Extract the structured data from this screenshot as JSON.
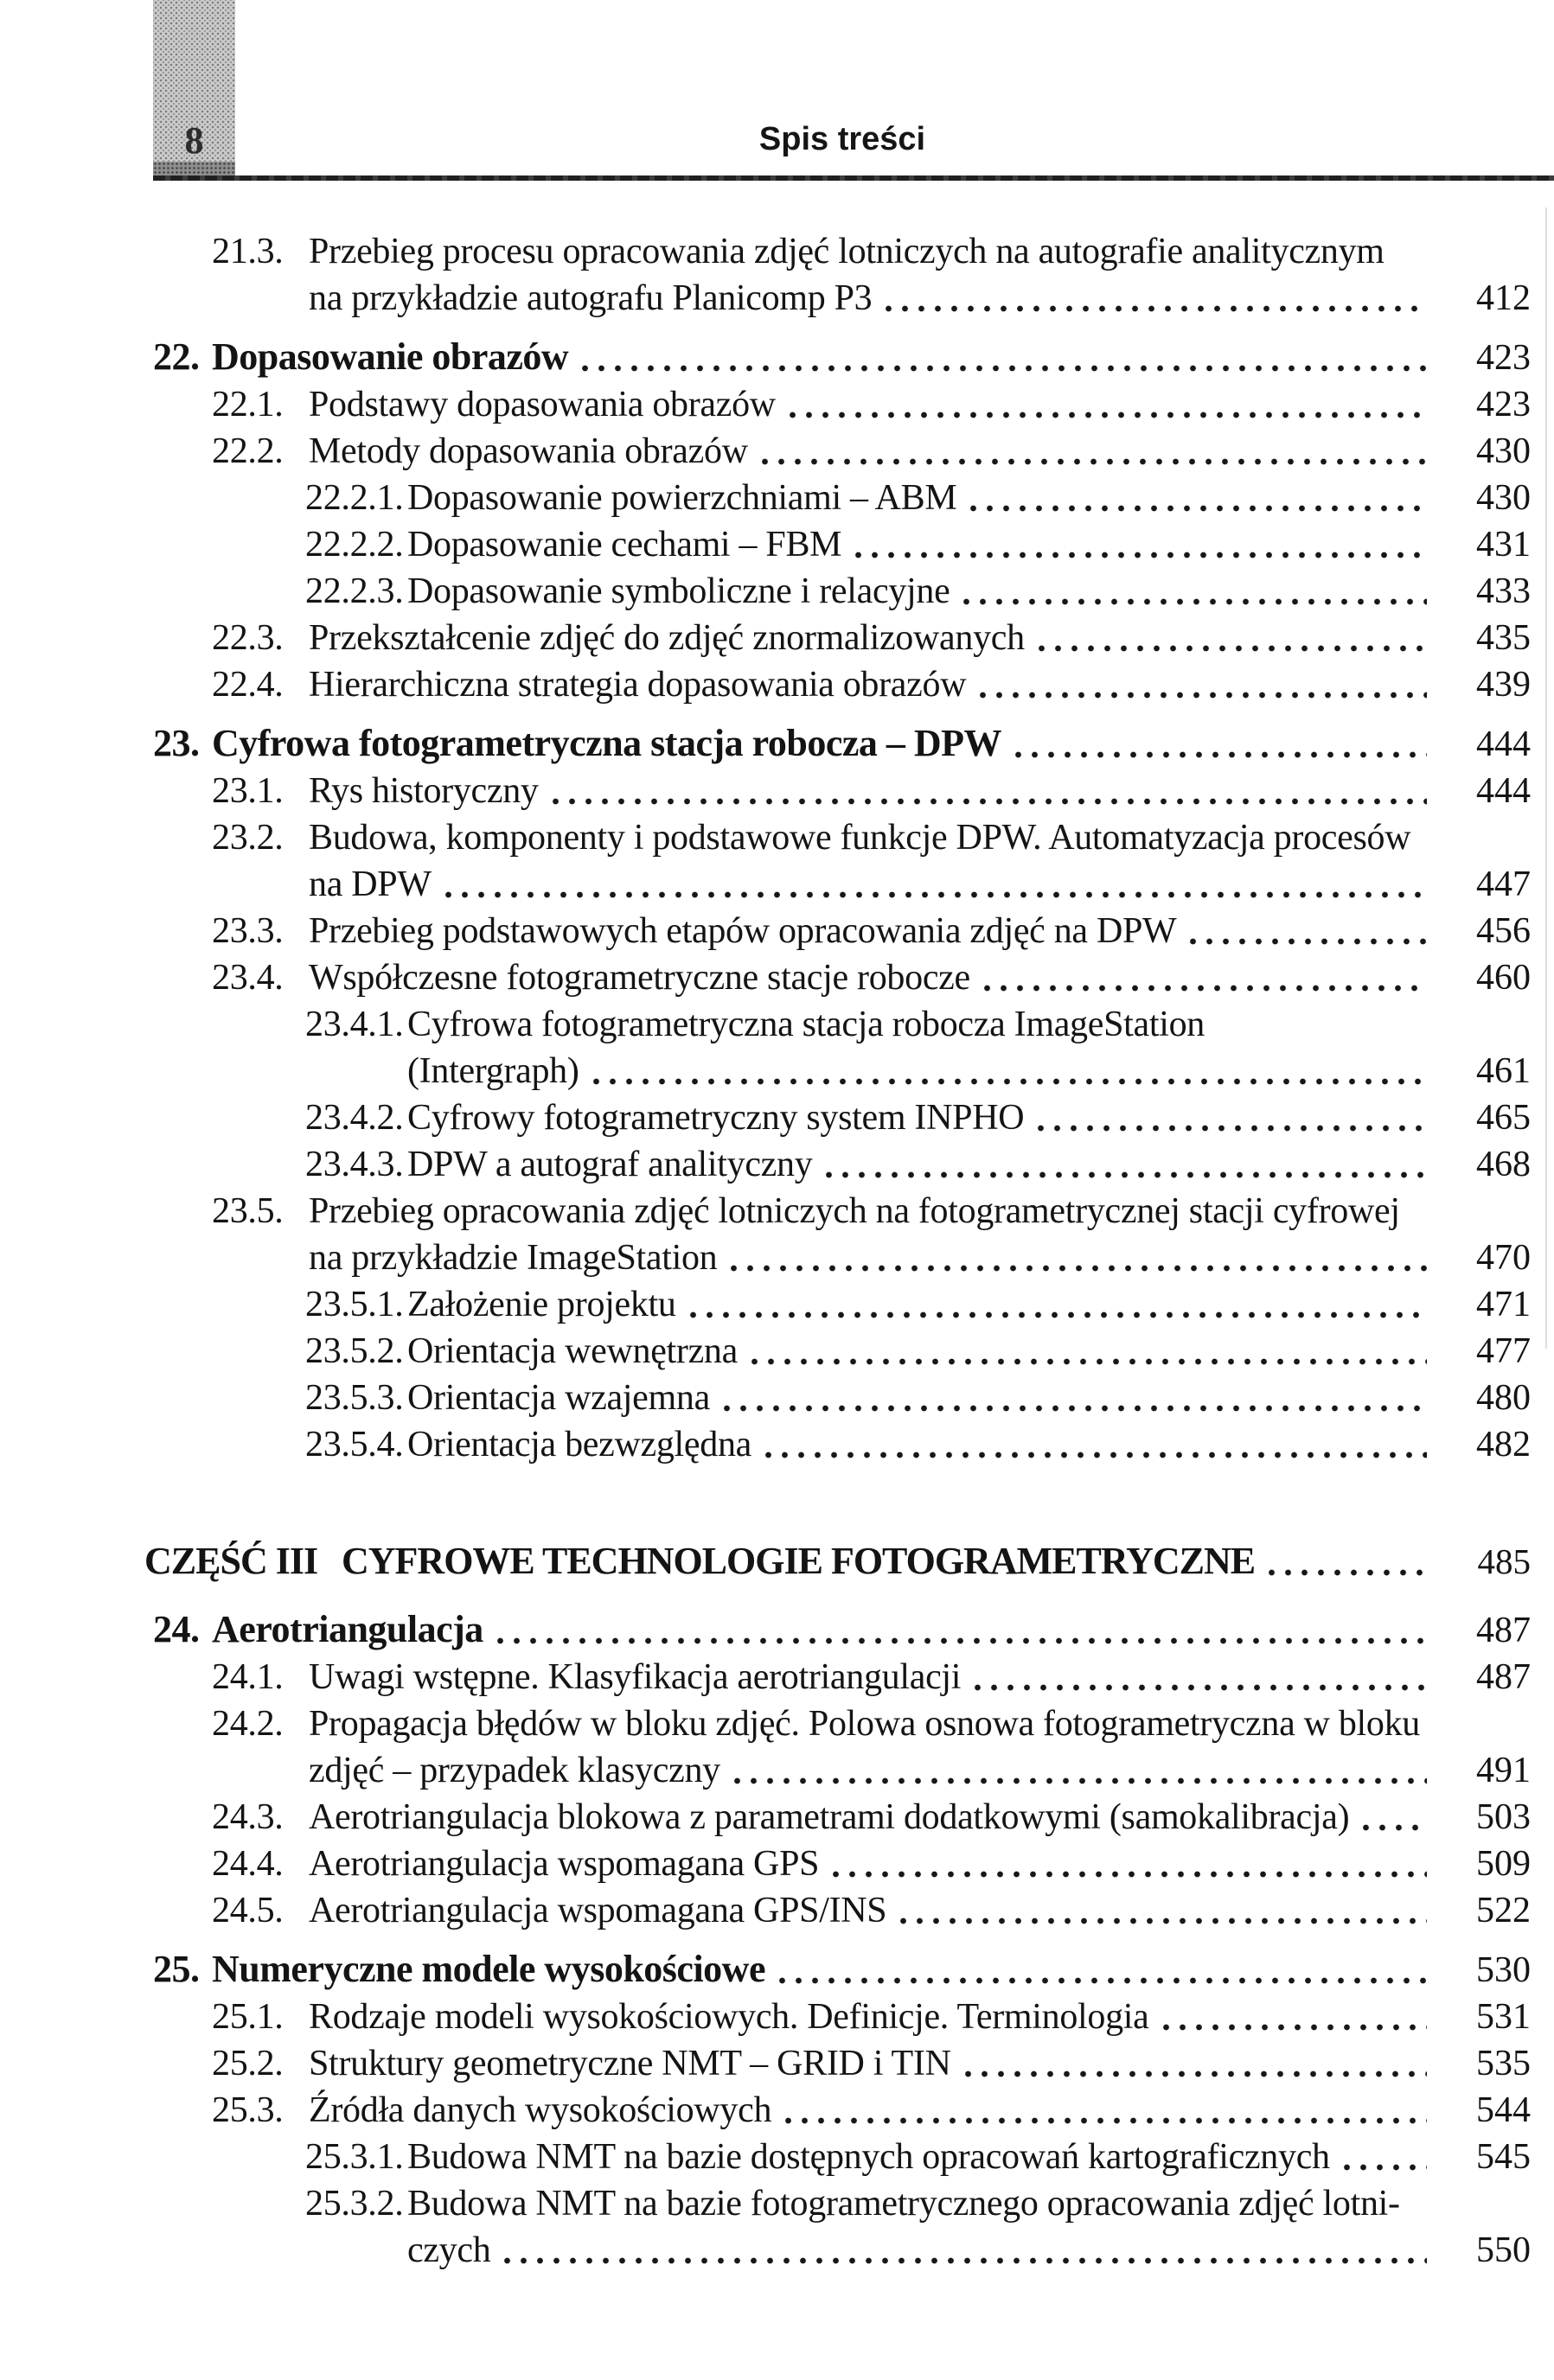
{
  "page": {
    "number": "8",
    "header_title": "Spis treści",
    "colors": {
      "ink": "#141414",
      "box_gray": "#cccccc",
      "box_band_gray": "#8f8f8f"
    }
  },
  "toc": {
    "entries": [
      {
        "level": 2,
        "number": "21.3.",
        "lines": [
          "Przebieg procesu opracowania zdjęć lotniczych na autografie analitycznym",
          "na przykładzie autografu Planicomp P3"
        ],
        "page": "412"
      },
      {
        "level": 1,
        "bold": true,
        "number": "22.",
        "lines": [
          "Dopasowanie obrazów"
        ],
        "page": "423"
      },
      {
        "level": 2,
        "number": "22.1.",
        "lines": [
          "Podstawy dopasowania obrazów"
        ],
        "page": "423"
      },
      {
        "level": 2,
        "number": "22.2.",
        "lines": [
          "Metody dopasowania obrazów"
        ],
        "page": "430"
      },
      {
        "level": 3,
        "number": "22.2.1.",
        "lines": [
          "Dopasowanie powierzchniami – ABM"
        ],
        "page": "430"
      },
      {
        "level": 3,
        "number": "22.2.2.",
        "lines": [
          "Dopasowanie cechami – FBM"
        ],
        "page": "431"
      },
      {
        "level": 3,
        "number": "22.2.3.",
        "lines": [
          "Dopasowanie symboliczne i relacyjne"
        ],
        "page": "433"
      },
      {
        "level": 2,
        "number": "22.3.",
        "lines": [
          "Przekształcenie zdjęć do zdjęć znormalizowanych"
        ],
        "page": "435"
      },
      {
        "level": 2,
        "number": "22.4.",
        "lines": [
          "Hierarchiczna strategia dopasowania obrazów"
        ],
        "page": "439"
      },
      {
        "level": 1,
        "bold": true,
        "number": "23.",
        "lines": [
          "Cyfrowa fotogrametryczna stacja robocza – DPW"
        ],
        "page": "444"
      },
      {
        "level": 2,
        "number": "23.1.",
        "lines": [
          "Rys historyczny"
        ],
        "page": "444"
      },
      {
        "level": 2,
        "number": "23.2.",
        "lines": [
          "Budowa, komponenty i podstawowe funkcje DPW. Automatyzacja procesów",
          "na DPW"
        ],
        "page": "447"
      },
      {
        "level": 2,
        "number": "23.3.",
        "lines": [
          "Przebieg podstawowych etapów opracowania zdjęć na DPW"
        ],
        "page": "456"
      },
      {
        "level": 2,
        "number": "23.4.",
        "lines": [
          "Współczesne fotogrametryczne stacje robocze"
        ],
        "page": "460"
      },
      {
        "level": 3,
        "number": "23.4.1.",
        "lines": [
          "Cyfrowa fotogrametryczna stacja robocza ImageStation",
          "(Intergraph)"
        ],
        "page": "461"
      },
      {
        "level": 3,
        "number": "23.4.2.",
        "lines": [
          "Cyfrowy fotogrametryczny system INPHO"
        ],
        "page": "465"
      },
      {
        "level": 3,
        "number": "23.4.3.",
        "lines": [
          "DPW a autograf analityczny"
        ],
        "page": "468"
      },
      {
        "level": 2,
        "number": "23.5.",
        "lines": [
          "Przebieg opracowania zdjęć lotniczych na fotogrametrycznej stacji cyfrowej",
          "na przykładzie ImageStation"
        ],
        "page": "470"
      },
      {
        "level": 3,
        "number": "23.5.1.",
        "lines": [
          "Założenie projektu"
        ],
        "page": "471"
      },
      {
        "level": 3,
        "number": "23.5.2.",
        "lines": [
          "Orientacja wewnętrzna"
        ],
        "page": "477"
      },
      {
        "level": 3,
        "number": "23.5.3.",
        "lines": [
          "Orientacja wzajemna"
        ],
        "page": "480"
      },
      {
        "level": 3,
        "number": "23.5.4.",
        "lines": [
          "Orientacja bezwzględna"
        ],
        "page": "482"
      },
      {
        "type": "part",
        "label": "CZĘŚĆ III",
        "title": "CYFROWE TECHNOLOGIE FOTOGRAMETRYCZNE",
        "page": "485"
      },
      {
        "level": 1,
        "bold": true,
        "number": "24.",
        "lines": [
          "Aerotriangulacja"
        ],
        "page": "487"
      },
      {
        "level": 2,
        "number": "24.1.",
        "lines": [
          "Uwagi wstępne. Klasyfikacja aerotriangulacji"
        ],
        "page": "487"
      },
      {
        "level": 2,
        "number": "24.2.",
        "lines": [
          "Propagacja błędów w bloku zdjęć. Polowa osnowa fotogrametryczna w bloku",
          "zdjęć – przypadek klasyczny"
        ],
        "page": "491"
      },
      {
        "level": 2,
        "number": "24.3.",
        "lines": [
          "Aerotriangulacja blokowa z parametrami dodatkowymi (samokalibracja)"
        ],
        "page": "503"
      },
      {
        "level": 2,
        "number": "24.4.",
        "lines": [
          "Aerotriangulacja wspomagana GPS"
        ],
        "page": "509"
      },
      {
        "level": 2,
        "number": "24.5.",
        "lines": [
          "Aerotriangulacja wspomagana GPS/INS"
        ],
        "page": "522"
      },
      {
        "level": 1,
        "bold": true,
        "number": "25.",
        "lines": [
          "Numeryczne modele wysokościowe"
        ],
        "page": "530"
      },
      {
        "level": 2,
        "number": "25.1.",
        "lines": [
          "Rodzaje modeli wysokościowych. Definicje. Terminologia"
        ],
        "page": "531"
      },
      {
        "level": 2,
        "number": "25.2.",
        "lines": [
          "Struktury geometryczne NMT – GRID i TIN"
        ],
        "page": "535"
      },
      {
        "level": 2,
        "number": "25.3.",
        "lines": [
          "Źródła danych wysokościowych"
        ],
        "page": "544"
      },
      {
        "level": 3,
        "number": "25.3.1.",
        "lines": [
          "Budowa NMT na bazie dostępnych opracowań kartograficznych"
        ],
        "page": "545"
      },
      {
        "level": 3,
        "number": "25.3.2.",
        "lines": [
          "Budowa NMT na bazie fotogrametrycznego opracowania zdjęć lotni-",
          "czych"
        ],
        "page": "550"
      }
    ]
  }
}
